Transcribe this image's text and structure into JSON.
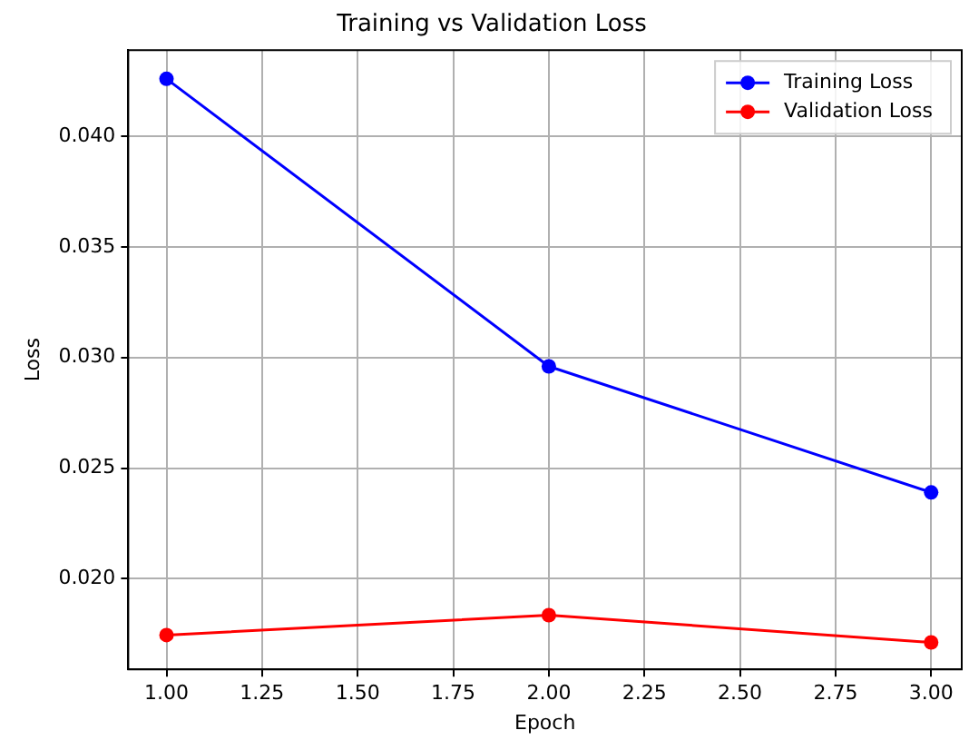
{
  "chart_data": {
    "type": "line",
    "title": "Training vs Validation Loss",
    "xlabel": "Epoch",
    "ylabel": "Loss",
    "x": [
      1,
      2,
      3
    ],
    "series": [
      {
        "name": "Training Loss",
        "color": "#0000ff",
        "values": [
          0.0426,
          0.0296,
          0.0239
        ]
      },
      {
        "name": "Validation Loss",
        "color": "#ff0000",
        "values": [
          0.01745,
          0.01835,
          0.01712
        ]
      }
    ],
    "xlim": [
      0.9,
      3.08
    ],
    "xticks": [
      {
        "value": 1,
        "label": "1.00"
      },
      {
        "value": 1.25,
        "label": "1.25"
      },
      {
        "value": 1.5,
        "label": "1.50"
      },
      {
        "value": 1.75,
        "label": "1.75"
      },
      {
        "value": 2,
        "label": "2.00"
      },
      {
        "value": 2.25,
        "label": "2.25"
      },
      {
        "value": 2.5,
        "label": "2.50"
      },
      {
        "value": 2.75,
        "label": "2.75"
      },
      {
        "value": 3,
        "label": "3.00"
      }
    ],
    "ylim": [
      0.0159,
      0.0439
    ],
    "yticks": [
      {
        "value": 0.02,
        "label": "0.020"
      },
      {
        "value": 0.025,
        "label": "0.025"
      },
      {
        "value": 0.03,
        "label": "0.030"
      },
      {
        "value": 0.035,
        "label": "0.035"
      },
      {
        "value": 0.04,
        "label": "0.040"
      }
    ],
    "grid": true,
    "legend": "top right",
    "marker": "circle",
    "line_style": "solid"
  }
}
